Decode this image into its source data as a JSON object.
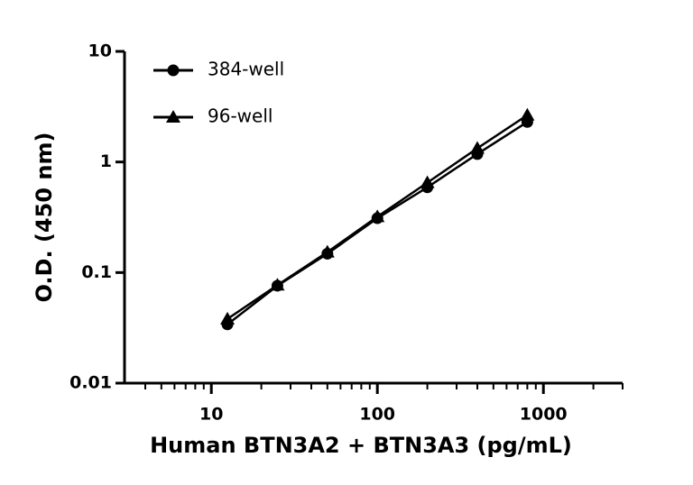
{
  "chart_data": {
    "type": "line",
    "x_label": "Human BTN3A2 + BTN3A3 (pg/mL)",
    "y_label": "O.D. (450 nm)",
    "x": [
      12.5,
      25,
      50,
      100,
      200,
      400,
      800
    ],
    "series": [
      {
        "name": "384-well",
        "color": "#000000",
        "marker": "circle",
        "values": [
          0.034,
          0.076,
          0.148,
          0.31,
          0.59,
          1.18,
          2.3
        ]
      },
      {
        "name": "96-well",
        "color": "#000000",
        "marker": "triangle",
        "values": [
          0.038,
          0.077,
          0.153,
          0.32,
          0.65,
          1.33,
          2.65
        ]
      }
    ],
    "xscale": "log",
    "yscale": "log",
    "xlim": [
      3,
      3000
    ],
    "ylim": [
      0.01,
      10
    ],
    "xticks": [
      10,
      100,
      1000
    ],
    "xminorticks": [
      4,
      5,
      6,
      7,
      8,
      9,
      20,
      30,
      40,
      50,
      60,
      70,
      80,
      90,
      200,
      300,
      400,
      500,
      600,
      700,
      800,
      900,
      2000,
      3000
    ],
    "yticks": [
      0.01,
      0.1,
      1,
      10
    ],
    "legend": "upper left"
  }
}
